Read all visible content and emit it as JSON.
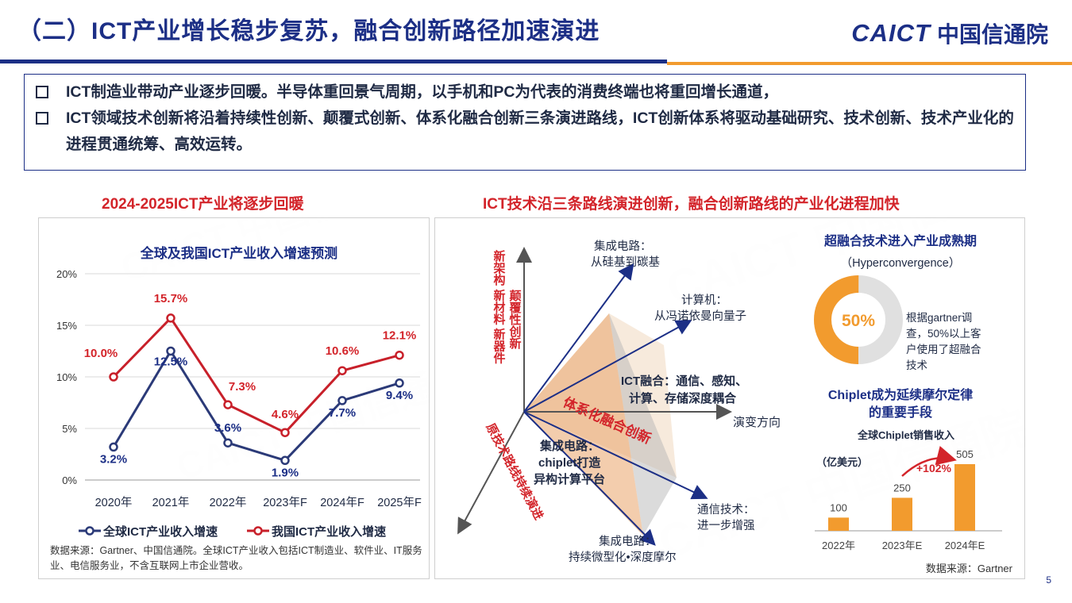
{
  "header": {
    "title": "（二）ICT产业增长稳步复苏，融合创新路径加速演进",
    "logo_latin": "CAICT",
    "logo_cn": "中国信通院"
  },
  "points": [
    "ICT制造业带动产业逐步回暖。半导体重回景气周期，以手机和PC为代表的消费终端也将重回增长通道，",
    "ICT领域技术创新将沿着持续性创新、颠覆式创新、体系化融合创新三条演进路线，ICT创新体系将驱动基础研究、技术创新、技术产业化的进程贯通统筹、高效运转。"
  ],
  "left_panel": {
    "heading": "2024-2025ICT产业将逐步回暖",
    "source_note": "数据来源：Gartner、中国信通院。全球ICT产业收入包括ICT制造业、软件业、IT服务业、电信服务业，不含互联网上市企业营收。"
  },
  "right_panel": {
    "heading": "ICT技术沿三条路线演进创新，融合创新路线的产业化进程加快",
    "axes": {
      "vertical": "新架构 新材料 新器件",
      "vertical_sub": "颠覆性创新",
      "diagonal": "原技术路线持续演进",
      "horizontal": "演变方向"
    },
    "labels": {
      "ic_top_title": "集成电路：",
      "ic_top_sub": "从硅基到碳基",
      "computer_title": "计算机：",
      "computer_sub": "从冯诺依曼向量子",
      "fusion_title": "ICT融合：通信、感知、",
      "fusion_sub": "计算、存储深度耦合",
      "system": "体系化融合创新",
      "chiplet_title": "集成电路：",
      "chiplet_l2": "chiplet打造",
      "chiplet_l3": "异构计算平台",
      "comm_title": "通信技术：",
      "comm_sub": "进一步增强",
      "ic_bottom_title": "集成电路：",
      "ic_bottom_sub": "持续微型化•深度摩尔"
    },
    "hyper": {
      "title": "超融合技术进入产业成熟期",
      "subtitle": "（Hyperconvergence）",
      "percent_label": "50%",
      "note_l1": "根据gartner调",
      "note_l2": "查，50%以上客",
      "note_l3": "户使用了超融合",
      "note_l4": "技术"
    },
    "chiplet": {
      "title_l1": "Chiplet成为延续摩尔定律",
      "title_l2": "的重要手段",
      "chart_title": "全球Chiplet销售收入",
      "unit": "（亿美元）",
      "growth": "+102%",
      "source": "数据来源：Gartner"
    }
  },
  "page_number": "5",
  "colors": {
    "navy": "#1c2f86",
    "red": "#d3242a",
    "orange": "#f29b2e",
    "gray_ring": "#e0e0e0",
    "global_line": "#2b3a78",
    "china_line": "#c8202a"
  },
  "chart_data": [
    {
      "type": "line",
      "title": "全球及我国ICT产业收入增速预测",
      "categories": [
        "2020年",
        "2021年",
        "2022年",
        "2023年F",
        "2024年F",
        "2025年F"
      ],
      "ylim": [
        0,
        20
      ],
      "yticks": [
        "0%",
        "5%",
        "10%",
        "15%",
        "20%"
      ],
      "grid": true,
      "legend_position": "bottom",
      "series": [
        {
          "name": "全球ICT产业收入增速",
          "values": [
            3.2,
            12.5,
            3.6,
            1.9,
            7.7,
            9.4
          ],
          "labels": [
            "3.2%",
            "12.5%",
            "3.6%",
            "1.9%",
            "7.7%",
            "9.4%"
          ],
          "color": "#2b3a78"
        },
        {
          "name": "我国ICT产业收入增速",
          "values": [
            10.0,
            15.7,
            7.3,
            4.6,
            10.6,
            12.1
          ],
          "labels": [
            "10.0%",
            "15.7%",
            "7.3%",
            "4.6%",
            "10.6%",
            "12.1%"
          ],
          "color": "#c8202a"
        }
      ]
    },
    {
      "type": "pie",
      "title": "",
      "values": [
        50,
        50
      ],
      "labels": [
        "50%",
        ""
      ],
      "colors": [
        "#f29b2e",
        "#e0e0e0"
      ]
    },
    {
      "type": "bar",
      "title": "全球Chiplet销售收入",
      "categories": [
        "2022年",
        "2023年E",
        "2024年E"
      ],
      "values": [
        100,
        250,
        505
      ],
      "labels": [
        "100",
        "250",
        "505"
      ],
      "annotation": "+102%",
      "color": "#f29b2e"
    }
  ]
}
